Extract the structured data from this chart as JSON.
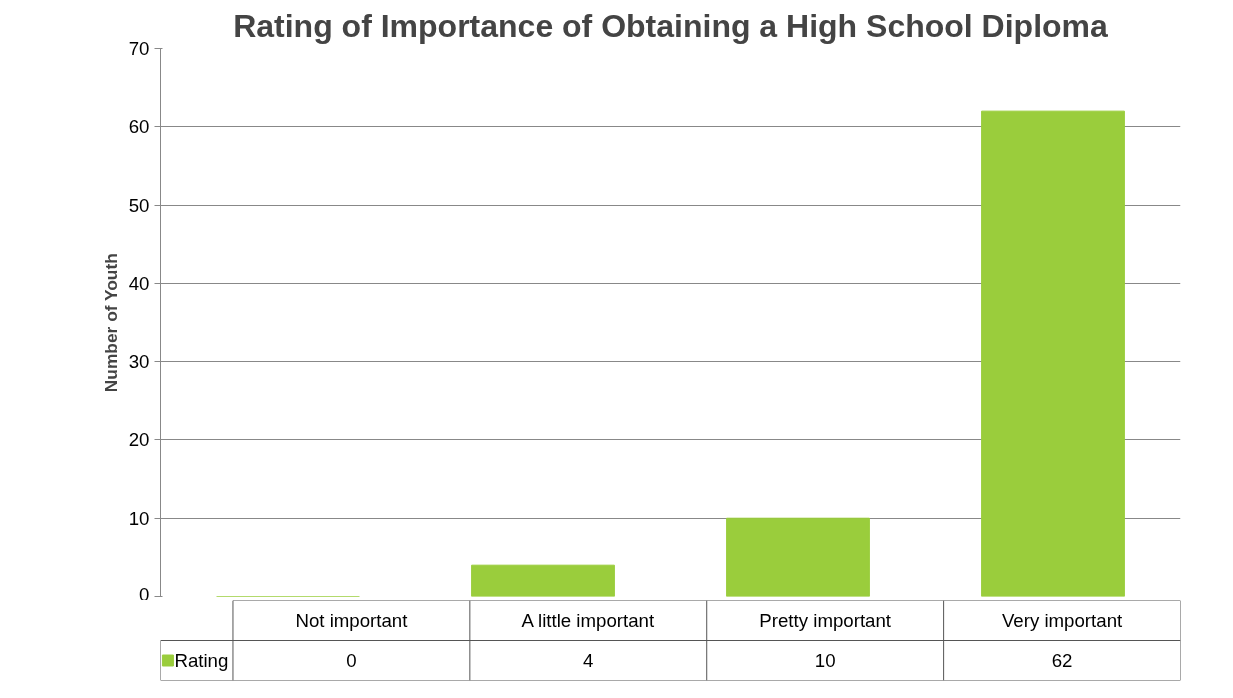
{
  "chart_data": {
    "type": "bar",
    "title": "Rating of Importance of Obtaining a High School Diploma",
    "ylabel": "Number of Youth",
    "categories": [
      "Not important",
      "A little important",
      "Pretty important",
      "Very important"
    ],
    "series": [
      {
        "name": "Rating",
        "color": "#9acd3c",
        "values": [
          0,
          4,
          10,
          62
        ]
      }
    ],
    "ylim": [
      0,
      70
    ],
    "yticks": [
      0,
      10,
      20,
      30,
      40,
      50,
      60,
      70
    ],
    "grid": "y",
    "legend": "bottom",
    "data_labels": true
  }
}
